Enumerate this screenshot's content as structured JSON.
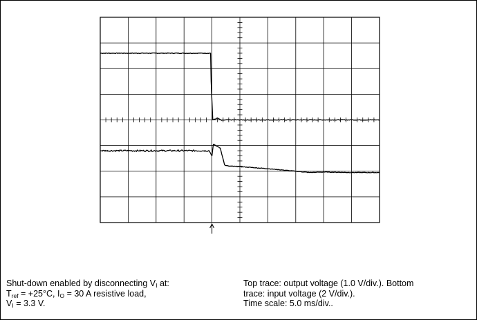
{
  "chart_data": {
    "type": "line",
    "title": "",
    "xlabel": "",
    "ylabel": "",
    "grid": true,
    "divisions": {
      "x": 10,
      "y": 8
    },
    "x_unit": "div",
    "y_unit": "div",
    "trigger_x": 4.0,
    "series": [
      {
        "name": "output voltage",
        "x": [
          0.0,
          3.95,
          3.97,
          4.03,
          4.2,
          4.35,
          4.5,
          10.0
        ],
        "y": [
          2.6,
          2.6,
          1.5,
          0.0,
          0.07,
          -0.02,
          0.0,
          0.0
        ]
      },
      {
        "name": "input voltage",
        "x": [
          0.0,
          3.9,
          4.0,
          4.05,
          4.3,
          4.45,
          4.5,
          4.6,
          5.0,
          6.0,
          7.0,
          7.5,
          8.0,
          9.0,
          10.0
        ],
        "y": [
          -1.2,
          -1.2,
          -1.4,
          -0.95,
          -1.1,
          -1.75,
          -1.78,
          -1.8,
          -1.82,
          -1.9,
          -2.0,
          -2.05,
          -2.03,
          -2.05,
          -2.05
        ]
      }
    ]
  },
  "caption": {
    "left": {
      "line1_a": "Shut-down enabled by disconnecting V",
      "line1_sub": "I",
      "line1_b": " at:",
      "line2_a": "T",
      "line2_sub1": "ref",
      "line2_b": " = +25°C, I",
      "line2_sub2": "O",
      "line2_c": " = 30 A resistive load,",
      "line3_a": "V",
      "line3_sub": "I",
      "line3_b": " = 3.3 V."
    },
    "right": {
      "line1": "Top trace: output voltage (1.0 V/div.). Bottom",
      "line2": "trace: input voltage (2 V/div.).",
      "line3": "Time scale: 5.0 ms/div.."
    }
  }
}
